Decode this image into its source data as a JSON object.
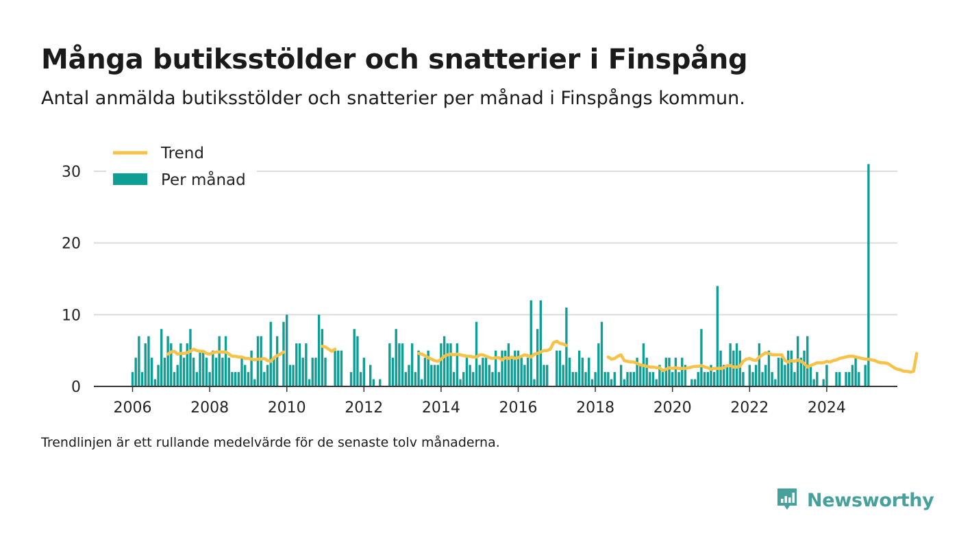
{
  "header": {
    "title": "Många butiksstölder och snatterier i Finspång",
    "subtitle": "Antal anmälda butiksstölder och snatterier per månad i Finspångs kommun."
  },
  "footnote": "Trendlinjen är ett rullande medelvärde för de senaste tolv månaderna.",
  "brand": {
    "name": "Newsworthy",
    "icon": "newsworthy-logo-icon",
    "color": "#46a09b"
  },
  "colors": {
    "bars": "#0f9e93",
    "trend": "#f7c24a",
    "grid": "#dcdcdc",
    "axis": "#333333"
  },
  "chart_data": {
    "type": "bar",
    "title": "Många butiksstölder och snatterier i Finspång",
    "xlabel": "",
    "ylabel": "",
    "ylim": [
      0,
      32
    ],
    "yticks": [
      0,
      10,
      20,
      30
    ],
    "xticks": [
      2006,
      2008,
      2010,
      2012,
      2014,
      2016,
      2018,
      2020,
      2022,
      2024
    ],
    "grid": true,
    "legend_position": "top-left",
    "start": "2006-01",
    "end": "2024-11",
    "series": [
      {
        "name": "Per månad",
        "type": "bar",
        "values": [
          2,
          4,
          7,
          2,
          6,
          7,
          4,
          1,
          3,
          8,
          4,
          7,
          6,
          2,
          3,
          6,
          4,
          6,
          8,
          4,
          2,
          5,
          5,
          4,
          2,
          5,
          4,
          7,
          4,
          7,
          4,
          2,
          2,
          2,
          4,
          3,
          2,
          5,
          1,
          7,
          7,
          2,
          3,
          9,
          4,
          7,
          null,
          9,
          10,
          3,
          3,
          6,
          6,
          4,
          6,
          1,
          4,
          4,
          10,
          8,
          4,
          null,
          null,
          5,
          5,
          5,
          null,
          null,
          2,
          8,
          7,
          2,
          4,
          null,
          3,
          1,
          null,
          1,
          null,
          null,
          6,
          4,
          8,
          6,
          6,
          2,
          3,
          6,
          2,
          5,
          1,
          4,
          5,
          3,
          3,
          3,
          6,
          7,
          6,
          6,
          2,
          6,
          1,
          2,
          4,
          3,
          2,
          9,
          3,
          4,
          4,
          3,
          2,
          5,
          2,
          5,
          5,
          6,
          4,
          5,
          5,
          4,
          3,
          4,
          12,
          1,
          8,
          12,
          3,
          3,
          null,
          null,
          5,
          5,
          3,
          11,
          4,
          2,
          2,
          5,
          4,
          2,
          4,
          1,
          2,
          6,
          9,
          2,
          2,
          1,
          2,
          null,
          3,
          1,
          2,
          2,
          2,
          4,
          3,
          6,
          4,
          2,
          2,
          1,
          3,
          2,
          4,
          4,
          2,
          4,
          2,
          4,
          3,
          null,
          1,
          1,
          2,
          8,
          2,
          2,
          3,
          2,
          14,
          5,
          3,
          3,
          6,
          5,
          6,
          5,
          2,
          null,
          3,
          2,
          3,
          6,
          2,
          3,
          5,
          2,
          1,
          4,
          4,
          3,
          5,
          5,
          2,
          7,
          4,
          5,
          7,
          3,
          1,
          2,
          null,
          1,
          3,
          null,
          null,
          2,
          2,
          null,
          2,
          2,
          3,
          4,
          2,
          null,
          3,
          31
        ]
      },
      {
        "name": "Trend",
        "type": "line",
        "values": [
          null,
          null,
          null,
          null,
          null,
          null,
          null,
          null,
          null,
          null,
          null,
          4.5,
          4.8,
          4.9,
          4.5,
          4.6,
          4.6,
          4.7,
          4.9,
          5.2,
          5.0,
          4.9,
          4.9,
          4.6,
          4.5,
          4.7,
          4.8,
          4.8,
          4.8,
          4.8,
          4.5,
          4.2,
          4.2,
          4.1,
          4.1,
          3.9,
          3.9,
          3.8,
          3.7,
          3.8,
          3.8,
          3.9,
          3.6,
          3.5,
          4.0,
          4.3,
          4.5,
          4.8,
          null,
          null,
          null,
          null,
          null,
          null,
          null,
          null,
          null,
          null,
          null,
          5.6,
          5.5,
          5.2,
          4.9,
          5.2,
          null,
          null,
          null,
          null,
          null,
          null,
          null,
          null,
          null,
          null,
          null,
          null,
          null,
          null,
          null,
          null,
          null,
          null,
          null,
          null,
          null,
          null,
          null,
          null,
          null,
          4.6,
          4.5,
          4.3,
          4.0,
          3.8,
          3.6,
          3.5,
          3.8,
          4.2,
          4.4,
          4.5,
          4.4,
          4.5,
          4.4,
          4.3,
          4.2,
          4.2,
          4.1,
          4.1,
          4.4,
          4.4,
          4.2,
          4.0,
          3.9,
          4.0,
          4.0,
          3.7,
          4.0,
          3.9,
          4.1,
          3.9,
          4.0,
          4.2,
          4.4,
          4.3,
          4.1,
          4.5,
          4.6,
          4.8,
          5.0,
          5.0,
          5.2,
          6.1,
          6.3,
          6.0,
          5.9,
          5.7,
          null,
          null,
          null,
          null,
          null,
          null,
          null,
          null,
          null,
          null,
          null,
          null,
          4.1,
          3.8,
          3.9,
          4.2,
          4.4,
          3.6,
          3.5,
          3.4,
          3.4,
          3.2,
          3.0,
          2.9,
          2.8,
          2.7,
          2.7,
          2.6,
          2.6,
          2.2,
          2.4,
          2.6,
          2.5,
          2.6,
          2.5,
          2.5,
          2.5,
          2.6,
          2.7,
          2.8,
          2.8,
          2.9,
          2.7,
          2.6,
          2.4,
          2.5,
          2.5,
          2.5,
          2.6,
          2.9,
          2.9,
          2.7,
          2.7,
          2.8,
          3.5,
          3.8,
          3.9,
          3.7,
          3.6,
          4.1,
          4.4,
          4.7,
          4.6,
          4.4,
          4.4,
          4.4,
          4.4,
          3.6,
          3.4,
          3.6,
          3.5,
          3.7,
          3.5,
          3.2,
          2.7,
          2.9,
          3.1,
          3.3,
          3.3,
          3.3,
          3.5,
          3.4,
          3.6,
          3.7,
          3.9,
          4.0,
          4.1,
          4.2,
          4.2,
          4.1,
          4.0,
          3.9,
          3.8,
          3.8,
          3.7,
          3.6,
          3.4,
          3.3,
          3.3,
          3.2,
          2.9,
          2.6,
          2.4,
          2.3,
          2.1,
          2.1,
          2.0,
          2.1,
          4.6
        ]
      }
    ]
  }
}
